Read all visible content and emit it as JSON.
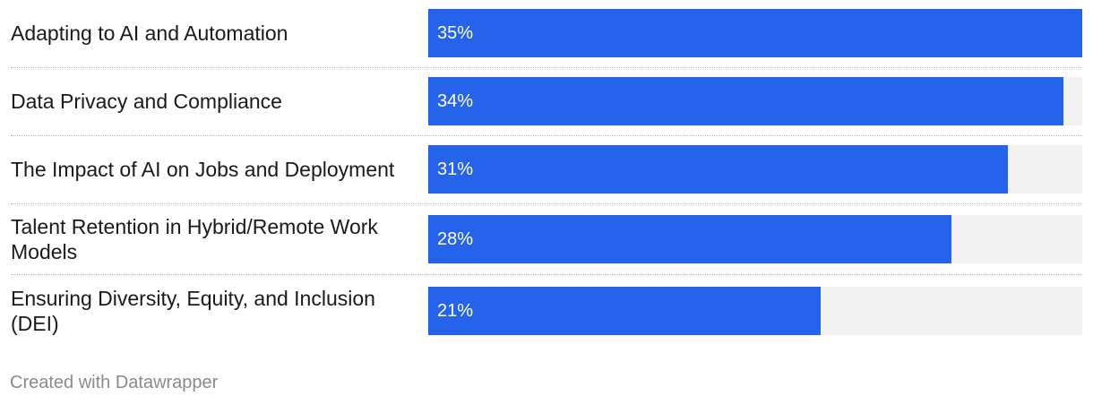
{
  "chart_data": {
    "type": "bar",
    "orientation": "horizontal",
    "categories": [
      "Adapting to AI and Automation",
      "Data Privacy and Compliance",
      "The Impact of AI on Jobs and Deployment",
      "Talent Retention in Hybrid/Remote Work Models",
      "Ensuring Diversity, Equity, and Inclusion (DEI)"
    ],
    "values": [
      35,
      34,
      31,
      28,
      21
    ],
    "value_labels": [
      "35%",
      "34%",
      "31%",
      "28%",
      "21%"
    ],
    "xlim": [
      0,
      35
    ],
    "bar_color": "#2563eb",
    "track_color": "#f1f1f1",
    "grid": false
  },
  "footer": {
    "credit": "Created with Datawrapper"
  }
}
